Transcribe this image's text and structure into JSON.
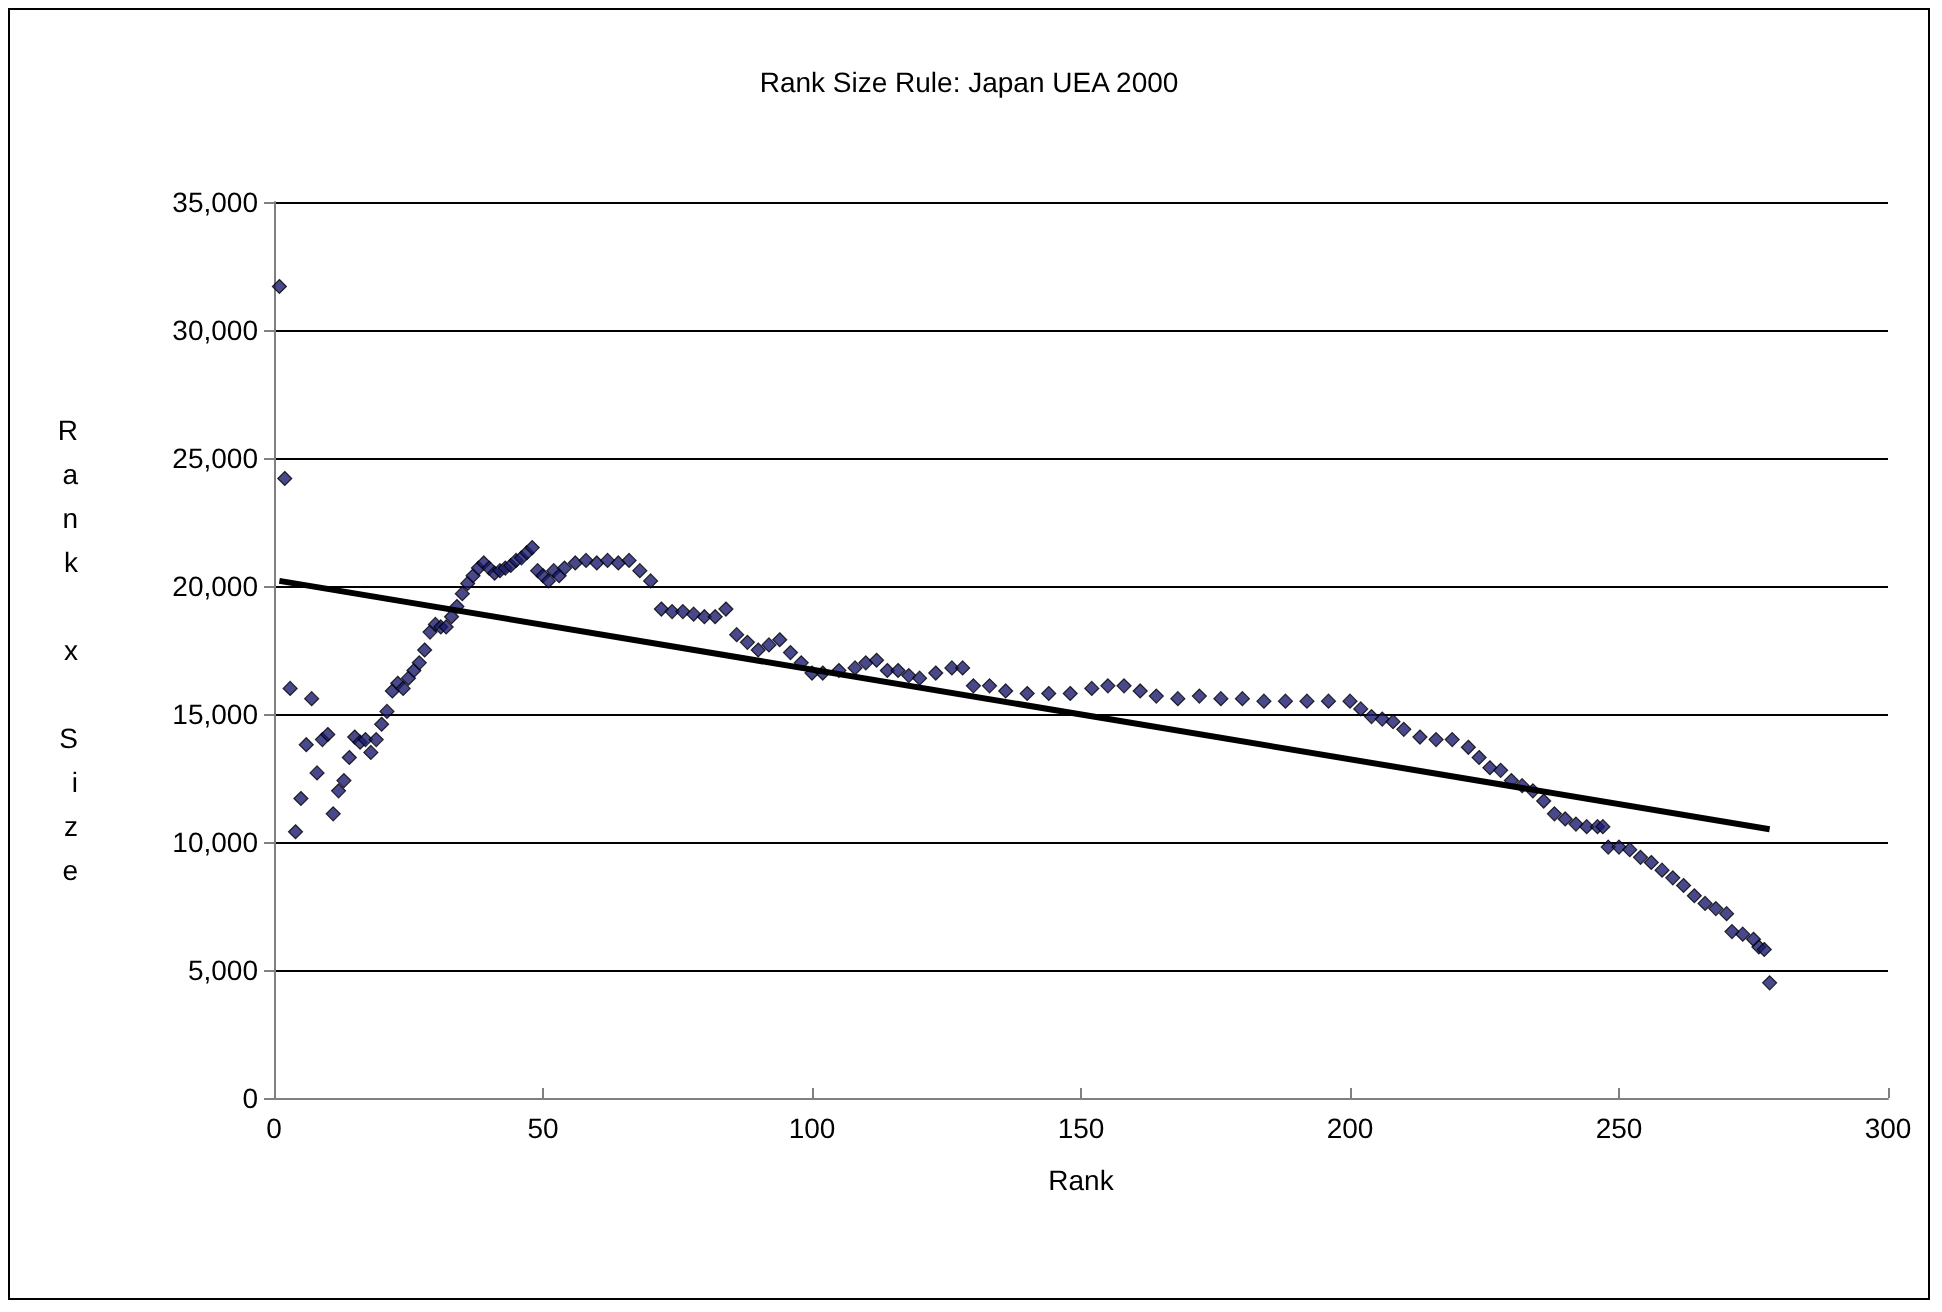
{
  "chart_data": {
    "type": "scatter",
    "title": "Rank Size Rule: Japan UEA 2000",
    "xlabel": "Rank",
    "ylabel": "Rank x Size",
    "xlim": [
      0,
      300
    ],
    "xticks": [
      0,
      50,
      100,
      150,
      200,
      250,
      300
    ],
    "ylim": [
      0,
      35000
    ],
    "yticks": [
      0,
      {
        "value": 5000,
        "label": "5,000"
      },
      {
        "value": 10000,
        "label": "10,000"
      },
      {
        "value": 15000,
        "label": "15,000"
      },
      {
        "value": 20000,
        "label": "20,000"
      },
      {
        "value": 25000,
        "label": "25,000"
      },
      {
        "value": 30000,
        "label": "30,000"
      },
      {
        "value": 35000,
        "label": "35,000"
      }
    ],
    "grid": "y",
    "marker": "diamond",
    "series": [
      {
        "color": "#1a1a6e",
        "x": [
          1,
          2,
          3,
          4,
          5,
          6,
          7,
          8,
          9,
          10,
          11,
          12,
          13,
          14,
          15,
          16,
          17,
          18,
          19,
          20,
          21,
          22,
          23,
          24,
          25,
          26,
          27,
          28,
          29,
          30,
          31,
          32,
          33,
          34,
          35,
          36,
          37,
          38,
          39,
          40,
          41,
          42,
          43,
          44,
          45,
          46,
          47,
          48,
          49,
          50,
          51,
          52,
          53,
          54,
          56,
          58,
          60,
          62,
          64,
          66,
          68,
          70,
          72,
          74,
          76,
          78,
          80,
          82,
          84,
          86,
          88,
          90,
          92,
          94,
          96,
          98,
          100,
          102,
          105,
          108,
          110,
          112,
          114,
          116,
          118,
          120,
          123,
          126,
          128,
          130,
          133,
          136,
          140,
          144,
          148,
          152,
          155,
          158,
          161,
          164,
          168,
          172,
          176,
          180,
          184,
          188,
          192,
          196,
          200,
          202,
          204,
          206,
          208,
          210,
          213,
          216,
          219,
          222,
          224,
          226,
          228,
          230,
          232,
          234,
          236,
          238,
          240,
          242,
          244,
          246,
          247,
          248,
          250,
          252,
          254,
          256,
          258,
          260,
          262,
          264,
          266,
          268,
          270,
          271,
          273,
          275,
          276,
          277,
          278
        ],
        "values": [
          31700,
          24200,
          16000,
          10400,
          11700,
          13800,
          15600,
          12700,
          14000,
          14200,
          11100,
          12000,
          12400,
          13300,
          14100,
          13900,
          14000,
          13500,
          14000,
          14600,
          15100,
          15900,
          16200,
          16000,
          16400,
          16700,
          17000,
          17500,
          18200,
          18500,
          18400,
          18400,
          18800,
          19200,
          19700,
          20100,
          20400,
          20700,
          20900,
          20700,
          20500,
          20600,
          20700,
          20800,
          21000,
          21100,
          21300,
          21500,
          20600,
          20400,
          20200,
          20600,
          20400,
          20700,
          20900,
          21000,
          20900,
          21000,
          20900,
          21000,
          20600,
          20200,
          19100,
          19000,
          19000,
          18900,
          18800,
          18800,
          19100,
          18100,
          17800,
          17500,
          17700,
          17900,
          17400,
          17000,
          16600,
          16600,
          16700,
          16800,
          17000,
          17100,
          16700,
          16700,
          16500,
          16400,
          16600,
          16800,
          16800,
          16100,
          16100,
          15900,
          15800,
          15800,
          15800,
          16000,
          16100,
          16100,
          15900,
          15700,
          15600,
          15700,
          15600,
          15600,
          15500,
          15500,
          15500,
          15500,
          15500,
          15200,
          14900,
          14800,
          14700,
          14400,
          14100,
          14000,
          14000,
          13700,
          13300,
          12900,
          12800,
          12400,
          12200,
          12000,
          11600,
          11100,
          10900,
          10700,
          10600,
          10600,
          10600,
          9800,
          9800,
          9700,
          9400,
          9200,
          8900,
          8600,
          8300,
          7900,
          7600,
          7400,
          7200,
          6500,
          6400,
          6200,
          5900,
          5800,
          4500
        ]
      },
      {
        "type": "line",
        "color": "#000000",
        "marker": "none",
        "x": [
          1,
          278
        ],
        "values": [
          20200,
          10500
        ]
      }
    ]
  }
}
